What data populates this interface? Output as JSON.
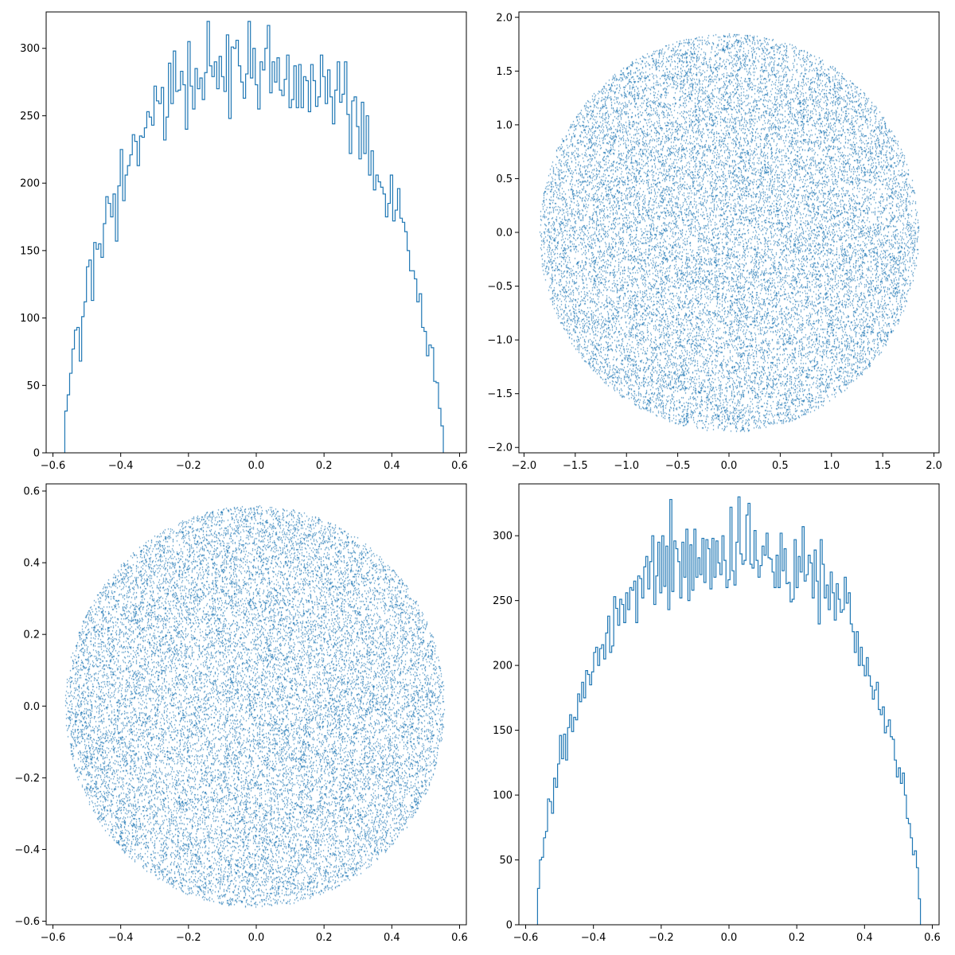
{
  "colors": {
    "accent": "#1f77b4",
    "axis": "#000000",
    "background": "#ffffff"
  },
  "chart_data": [
    {
      "type": "histogram",
      "position": "top-left",
      "histtype": "step",
      "xlim": [
        -0.62,
        0.62
      ],
      "ylim": [
        0,
        327
      ],
      "xticks": [
        -0.6,
        -0.4,
        -0.2,
        0.0,
        0.2,
        0.4,
        0.6
      ],
      "xtick_labels": [
        "−0.6",
        "−0.4",
        "−0.2",
        "0.0",
        "0.2",
        "0.4",
        "0.6"
      ],
      "yticks": [
        0,
        50,
        100,
        150,
        200,
        250,
        300
      ],
      "ytick_labels": [
        "0",
        "50",
        "100",
        "150",
        "200",
        "250",
        "300"
      ],
      "bin_start": -0.565,
      "bin_end": 0.552,
      "counts": [
        31,
        43,
        59,
        77,
        91,
        93,
        68,
        101,
        112,
        138,
        143,
        113,
        156,
        151,
        155,
        145,
        170,
        190,
        185,
        175,
        192,
        157,
        198,
        225,
        187,
        206,
        213,
        221,
        236,
        231,
        213,
        235,
        234,
        241,
        253,
        249,
        243,
        272,
        261,
        259,
        271,
        232,
        249,
        289,
        259,
        298,
        268,
        269,
        283,
        273,
        240,
        305,
        272,
        255,
        285,
        270,
        278,
        262,
        282,
        320,
        287,
        279,
        290,
        270,
        294,
        279,
        268,
        310,
        248,
        301,
        300,
        306,
        287,
        275,
        263,
        281,
        320,
        278,
        300,
        273,
        255,
        290,
        284,
        300,
        317,
        267,
        290,
        275,
        293,
        269,
        265,
        277,
        295,
        256,
        262,
        287,
        256,
        288,
        256,
        279,
        276,
        253,
        288,
        276,
        257,
        264,
        295,
        279,
        259,
        284,
        264,
        244,
        269,
        290,
        260,
        266,
        290,
        251,
        222,
        261,
        264,
        242,
        218,
        260,
        222,
        250,
        206,
        224,
        195,
        206,
        201,
        197,
        192,
        175,
        185,
        206,
        172,
        180,
        196,
        174,
        171,
        164,
        150,
        135,
        135,
        129,
        112,
        118,
        93,
        90,
        72,
        80,
        78,
        53,
        52,
        33,
        20
      ]
    },
    {
      "type": "scatter",
      "position": "top-right",
      "marker": "pixel",
      "shape": "disk",
      "center": [
        0,
        0
      ],
      "radius": 1.85,
      "point_count": 20000,
      "xlim": [
        -2.05,
        2.05
      ],
      "ylim": [
        -2.05,
        2.05
      ],
      "xticks": [
        -2.0,
        -1.5,
        -1.0,
        -0.5,
        0.0,
        0.5,
        1.0,
        1.5,
        2.0
      ],
      "xtick_labels": [
        "−2.0",
        "−1.5",
        "−1.0",
        "−0.5",
        "0.0",
        "0.5",
        "1.0",
        "1.5",
        "2.0"
      ],
      "yticks": [
        -2.0,
        -1.5,
        -1.0,
        -0.5,
        0.0,
        0.5,
        1.0,
        1.5,
        2.0
      ],
      "ytick_labels": [
        "−2.0",
        "−1.5",
        "−1.0",
        "−0.5",
        "0.0",
        "0.5",
        "1.0",
        "1.5",
        "2.0"
      ]
    },
    {
      "type": "scatter",
      "position": "bottom-left",
      "marker": "pixel",
      "shape": "disk",
      "center": [
        -0.005,
        0.0
      ],
      "radius": 0.56,
      "point_count": 20000,
      "xlim": [
        -0.62,
        0.62
      ],
      "ylim": [
        -0.61,
        0.62
      ],
      "xticks": [
        -0.6,
        -0.4,
        -0.2,
        0.0,
        0.2,
        0.4,
        0.6
      ],
      "xtick_labels": [
        "−0.6",
        "−0.4",
        "−0.2",
        "0.0",
        "0.2",
        "0.4",
        "0.6"
      ],
      "yticks": [
        -0.6,
        -0.4,
        -0.2,
        0.0,
        0.2,
        0.4,
        0.6
      ],
      "ytick_labels": [
        "−0.6",
        "−0.4",
        "−0.2",
        "0.0",
        "0.2",
        "0.4",
        "0.6"
      ]
    },
    {
      "type": "histogram",
      "position": "bottom-right",
      "histtype": "step",
      "xlim": [
        -0.62,
        0.62
      ],
      "ylim": [
        0,
        340
      ],
      "xticks": [
        -0.6,
        -0.4,
        -0.2,
        0.0,
        0.2,
        0.4,
        0.6
      ],
      "xtick_labels": [
        "−0.6",
        "−0.4",
        "−0.2",
        "0.0",
        "0.2",
        "0.4",
        "0.6"
      ],
      "yticks": [
        0,
        50,
        100,
        150,
        200,
        250,
        300
      ],
      "ytick_labels": [
        "0",
        "50",
        "100",
        "150",
        "200",
        "250",
        "300"
      ],
      "bin_start": -0.565,
      "bin_end": 0.565,
      "counts": [
        28,
        50,
        52,
        67,
        72,
        97,
        95,
        86,
        113,
        106,
        124,
        146,
        128,
        147,
        127,
        152,
        162,
        149,
        160,
        158,
        178,
        172,
        187,
        175,
        196,
        193,
        185,
        195,
        210,
        214,
        200,
        213,
        216,
        205,
        225,
        238,
        210,
        215,
        253,
        244,
        231,
        251,
        247,
        233,
        256,
        243,
        260,
        258,
        265,
        233,
        269,
        267,
        252,
        276,
        284,
        259,
        280,
        300,
        247,
        269,
        295,
        256,
        300,
        261,
        292,
        243,
        328,
        257,
        296,
        290,
        280,
        252,
        295,
        268,
        305,
        250,
        293,
        258,
        305,
        268,
        283,
        270,
        298,
        264,
        297,
        290,
        259,
        298,
        268,
        296,
        279,
        270,
        300,
        281,
        260,
        266,
        322,
        273,
        262,
        295,
        330,
        286,
        278,
        281,
        316,
        325,
        278,
        275,
        304,
        281,
        268,
        277,
        292,
        285,
        302,
        283,
        282,
        272,
        260,
        285,
        260,
        302,
        273,
        290,
        263,
        264,
        249,
        251,
        297,
        260,
        284,
        272,
        307,
        265,
        270,
        285,
        279,
        252,
        289,
        265,
        232,
        297,
        278,
        252,
        262,
        243,
        272,
        256,
        235,
        263,
        251,
        241,
        243,
        268,
        248,
        256,
        232,
        226,
        210,
        226,
        200,
        214,
        200,
        192,
        206,
        192,
        184,
        174,
        181,
        187,
        166,
        162,
        168,
        148,
        153,
        158,
        145,
        143,
        127,
        114,
        121,
        109,
        117,
        100,
        82,
        78,
        67,
        54,
        57,
        44,
        20
      ]
    }
  ]
}
